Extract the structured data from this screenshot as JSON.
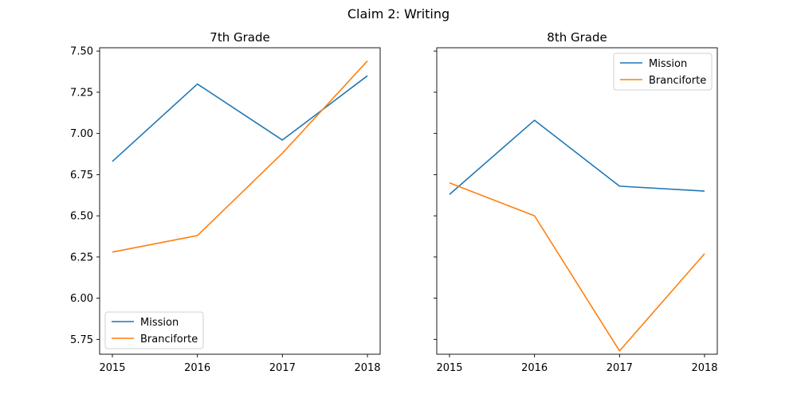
{
  "figure": {
    "title": "Claim 2: Writing"
  },
  "chart_data": [
    {
      "type": "line",
      "title": "7th Grade",
      "xlabel": "",
      "ylabel": "",
      "x": [
        2015,
        2016,
        2017,
        2018
      ],
      "xticks": [
        "2015",
        "2016",
        "2017",
        "2018"
      ],
      "ylim": [
        5.66,
        7.52
      ],
      "yticks": [
        "5.75",
        "6.00",
        "6.25",
        "6.50",
        "6.75",
        "7.00",
        "7.25",
        "7.50"
      ],
      "legend": "lower-left",
      "grid": false,
      "series": [
        {
          "name": "Mission",
          "color": "#1f77b4",
          "values": [
            6.83,
            7.3,
            6.96,
            7.35
          ]
        },
        {
          "name": "Branciforte",
          "color": "#ff7f0e",
          "values": [
            6.28,
            6.38,
            6.88,
            7.44
          ]
        }
      ]
    },
    {
      "type": "line",
      "title": "8th Grade",
      "xlabel": "",
      "ylabel": "",
      "x": [
        2015,
        2016,
        2017,
        2018
      ],
      "xticks": [
        "2015",
        "2016",
        "2017",
        "2018"
      ],
      "ylim": [
        5.66,
        7.52
      ],
      "yticks": [],
      "legend": "upper-right",
      "grid": false,
      "series": [
        {
          "name": "Mission",
          "color": "#1f77b4",
          "values": [
            6.63,
            7.08,
            6.68,
            6.65
          ]
        },
        {
          "name": "Branciforte",
          "color": "#ff7f0e",
          "values": [
            6.7,
            6.5,
            5.68,
            6.27
          ]
        }
      ]
    }
  ]
}
